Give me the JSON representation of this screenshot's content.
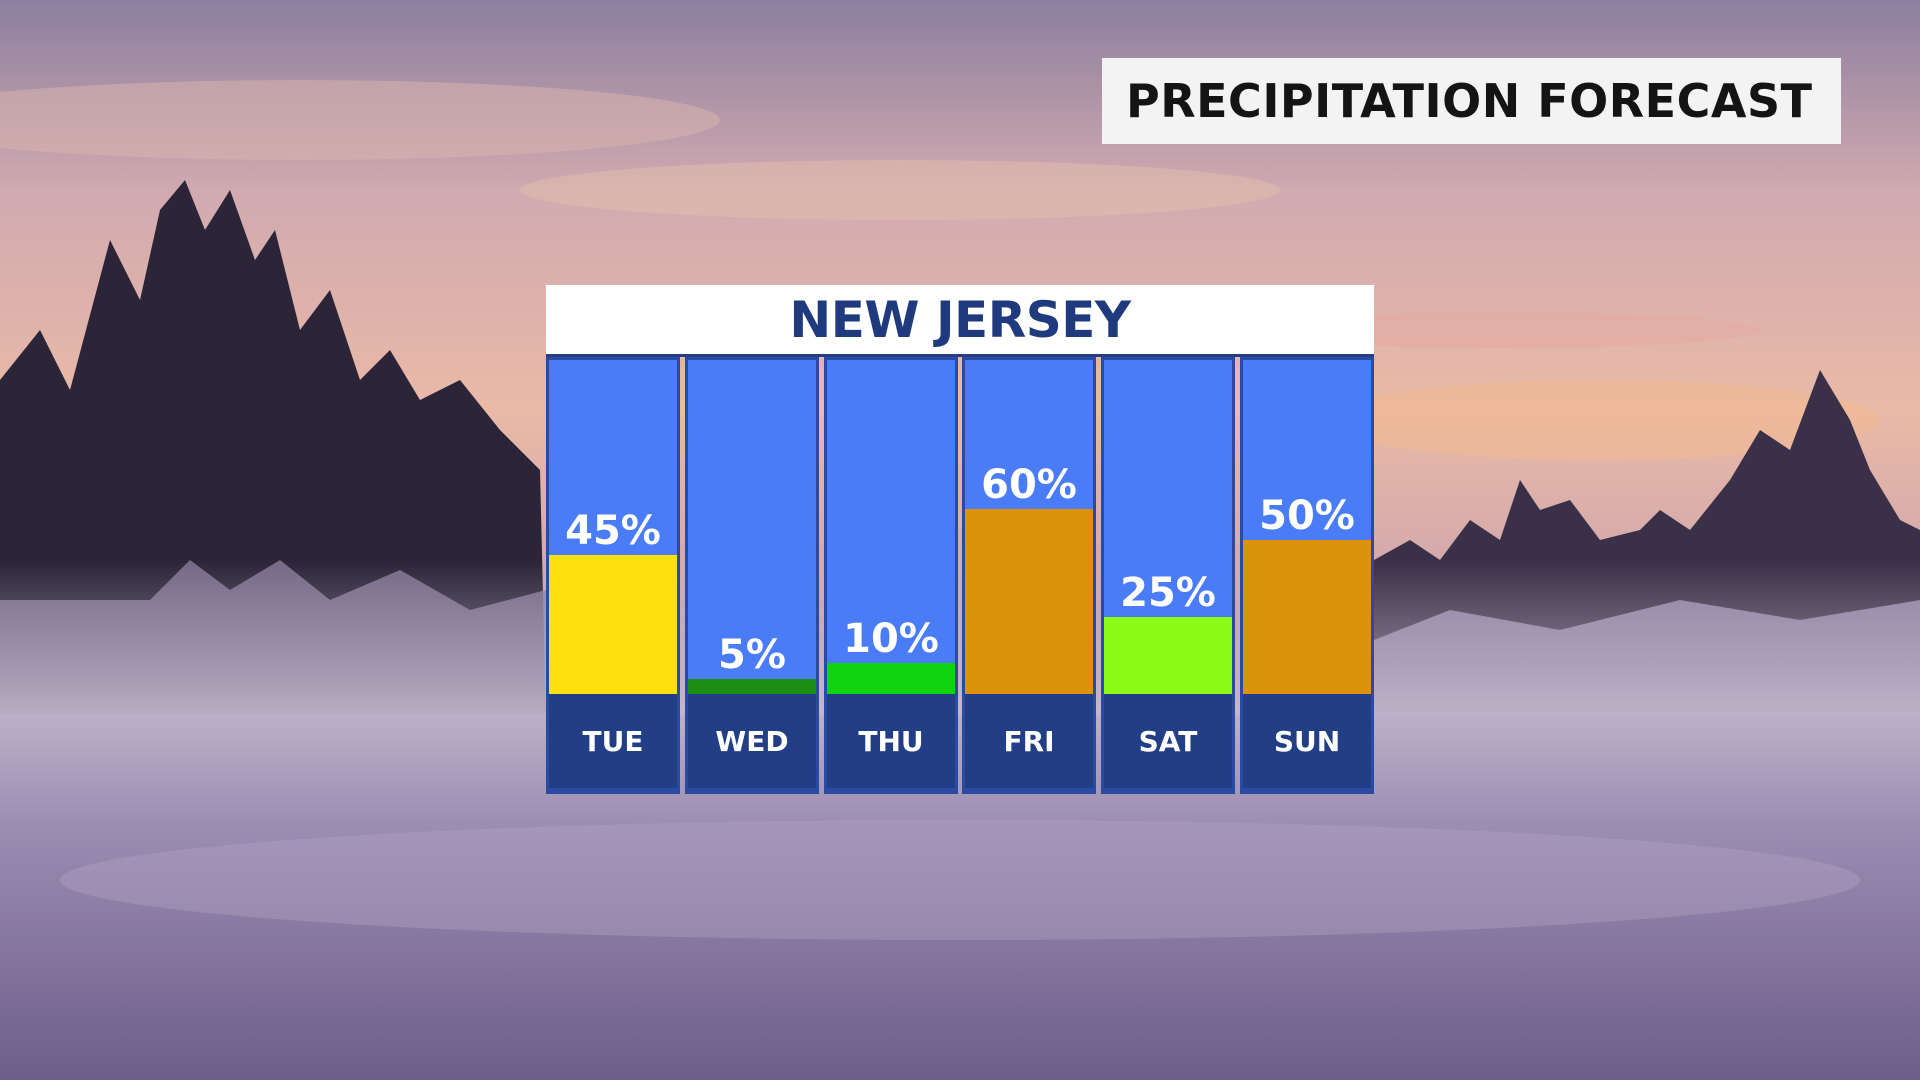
{
  "header": {
    "title": "PRECIPITATION FORECAST"
  },
  "chart_data": {
    "type": "bar",
    "title": "NEW JERSEY",
    "categories": [
      "TUE",
      "WED",
      "THU",
      "FRI",
      "SAT",
      "SUN"
    ],
    "values": [
      45,
      5,
      10,
      60,
      25,
      50
    ],
    "value_labels": [
      "45%",
      "5%",
      "10%",
      "60%",
      "25%",
      "50%"
    ],
    "ylim": [
      0,
      100
    ],
    "bar_colors": [
      "#ffe00f",
      "#1a8f14",
      "#0fd40f",
      "#dc920a",
      "#8dfb16",
      "#dc920a"
    ],
    "plot_background": "#4a7cf8",
    "label_background": "#223e86"
  }
}
